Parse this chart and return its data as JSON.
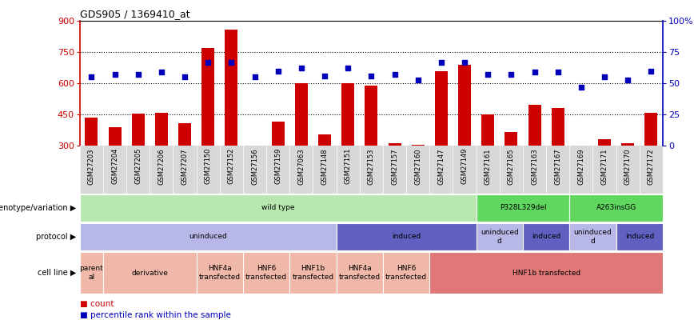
{
  "title": "GDS905 / 1369410_at",
  "samples": [
    "GSM27203",
    "GSM27204",
    "GSM27205",
    "GSM27206",
    "GSM27207",
    "GSM27150",
    "GSM27152",
    "GSM27156",
    "GSM27159",
    "GSM27063",
    "GSM27148",
    "GSM27151",
    "GSM27153",
    "GSM27157",
    "GSM27160",
    "GSM27147",
    "GSM27149",
    "GSM27161",
    "GSM27165",
    "GSM27163",
    "GSM27167",
    "GSM27169",
    "GSM27171",
    "GSM27170",
    "GSM27172"
  ],
  "counts": [
    435,
    390,
    455,
    460,
    408,
    770,
    860,
    295,
    415,
    600,
    355,
    600,
    590,
    310,
    305,
    660,
    690,
    450,
    365,
    495,
    480,
    295,
    330,
    310,
    460
  ],
  "percentiles": [
    55,
    57,
    57,
    59,
    55,
    67,
    67,
    55,
    60,
    62,
    56,
    62,
    56,
    57,
    53,
    67,
    67,
    57,
    57,
    59,
    59,
    47,
    55,
    53,
    60
  ],
  "count_color": "#cc0000",
  "dot_color": "#0000bb",
  "ylim": [
    300,
    900
  ],
  "yticks": [
    300,
    450,
    600,
    750,
    900
  ],
  "right_ylim": [
    0,
    100
  ],
  "right_yticks": [
    0,
    25,
    50,
    75,
    100
  ],
  "right_yticklabels": [
    "0",
    "25",
    "50",
    "75",
    "100%"
  ],
  "hlines": [
    450,
    600,
    750
  ],
  "xtick_bg": "#d8d8d8",
  "geno_segments": [
    {
      "text": "wild type",
      "start": 0,
      "end": 17,
      "color": "#b8e8b0"
    },
    {
      "text": "P328L329del",
      "start": 17,
      "end": 21,
      "color": "#60d860"
    },
    {
      "text": "A263insGG",
      "start": 21,
      "end": 25,
      "color": "#60d860"
    }
  ],
  "prot_segments": [
    {
      "text": "uninduced",
      "start": 0,
      "end": 11,
      "color": "#b8b8e8"
    },
    {
      "text": "induced",
      "start": 11,
      "end": 17,
      "color": "#6060c0"
    },
    {
      "text": "uninduced\nd",
      "start": 17,
      "end": 19,
      "color": "#b8b8e8"
    },
    {
      "text": "induced",
      "start": 19,
      "end": 21,
      "color": "#6060c0"
    },
    {
      "text": "uninduced\nd",
      "start": 21,
      "end": 23,
      "color": "#b8b8e8"
    },
    {
      "text": "induced",
      "start": 23,
      "end": 25,
      "color": "#6060c0"
    }
  ],
  "cell_segments": [
    {
      "text": "parent\nal",
      "start": 0,
      "end": 1,
      "color": "#f0b8a8"
    },
    {
      "text": "derivative",
      "start": 1,
      "end": 5,
      "color": "#f0b8a8"
    },
    {
      "text": "HNF4a\ntransfected",
      "start": 5,
      "end": 7,
      "color": "#f0b8a8"
    },
    {
      "text": "HNF6\ntransfected",
      "start": 7,
      "end": 9,
      "color": "#f0b8a8"
    },
    {
      "text": "HNF1b\ntransfected",
      "start": 9,
      "end": 11,
      "color": "#f0b8a8"
    },
    {
      "text": "HNF4a\ntransfected",
      "start": 11,
      "end": 13,
      "color": "#f0b8a8"
    },
    {
      "text": "HNF6\ntransfected",
      "start": 13,
      "end": 15,
      "color": "#f0b8a8"
    },
    {
      "text": "HNF1b transfected",
      "start": 15,
      "end": 25,
      "color": "#e07878"
    }
  ],
  "row_labels": [
    "genotype/variation",
    "protocol",
    "cell line"
  ],
  "legend_items": [
    {
      "color": "#cc0000",
      "label": "count"
    },
    {
      "color": "#0000bb",
      "label": "percentile rank within the sample"
    }
  ]
}
